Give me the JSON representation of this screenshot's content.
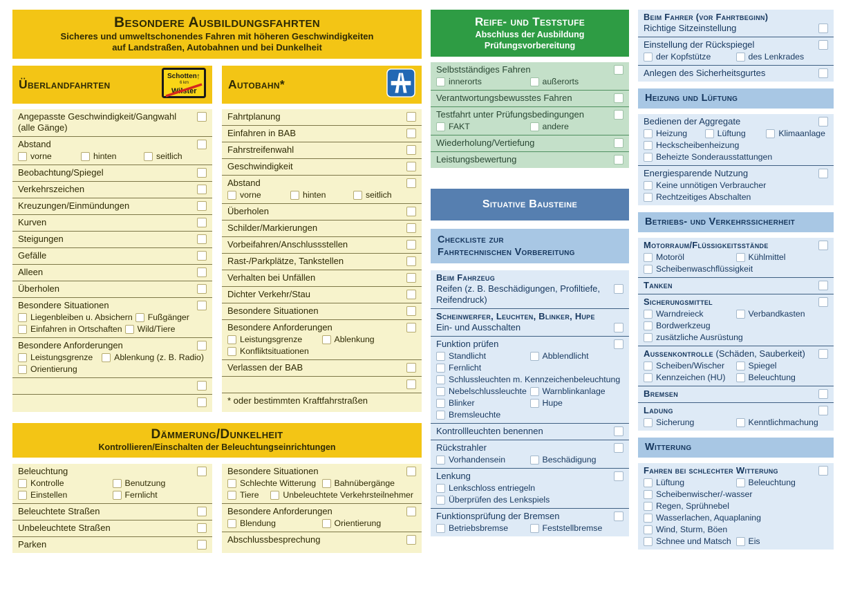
{
  "colors": {
    "yellow_band": "#f3c515",
    "yellow_list": "#f7f3cc",
    "green_band": "#2e9c44",
    "green_list": "#c4e0c9",
    "steel_blue_band": "#567fb0",
    "light_blue_band": "#a8c7e4",
    "blue_list": "#deeaf6",
    "navy_text": "#16375e"
  },
  "left": {
    "header": {
      "title": "Besondere Ausbildungsfahrten",
      "subtitle1": "Sicheres und umweltschonendes Fahren mit höheren Geschwindigkeiten",
      "subtitle2": "auf Landstraßen, Autobahnen und bei Dunkelheit"
    },
    "ueberland": {
      "title": "Überlandfahrten",
      "sign": {
        "top": "Schotten",
        "arrow": "↑",
        "km": "6 km",
        "bottom": "Wilster"
      },
      "rows": [
        {
          "label": "Angepasste Geschwindigkeit/Gangwahl (alle Gänge)",
          "cb": true
        },
        {
          "label": "Abstand",
          "cb": true,
          "subs": [
            [
              "vorne",
              "hinten",
              "seitlich"
            ]
          ]
        },
        {
          "label": "Beobachtung/Spiegel",
          "cb": true
        },
        {
          "label": "Verkehrszeichen",
          "cb": true
        },
        {
          "label": "Kreuzungen/Einmündungen",
          "cb": true
        },
        {
          "label": "Kurven",
          "cb": true
        },
        {
          "label": "Steigungen",
          "cb": true
        },
        {
          "label": "Gefälle",
          "cb": true
        },
        {
          "label": "Alleen",
          "cb": true
        },
        {
          "label": "Überholen",
          "cb": true
        },
        {
          "label": "Besondere Situationen",
          "cb": true,
          "subs": [
            [
              "Liegenbleiben u. Absichern",
              "Fußgänger"
            ],
            [
              "Einfahren in Ortschaften",
              "Wild/Tiere"
            ]
          ]
        },
        {
          "label": "Besondere Anforderungen",
          "cb": true,
          "subs": [
            [
              "Leistungsgrenze",
              "Ablenkung (z. B. Radio)"
            ],
            [
              "Orientierung"
            ]
          ]
        },
        {
          "label": "",
          "cb": true
        },
        {
          "label": "",
          "cb": true
        }
      ]
    },
    "autobahn": {
      "title": "Autobahn*",
      "rows": [
        {
          "label": "Fahrtplanung",
          "cb": true
        },
        {
          "label": "Einfahren in BAB",
          "cb": true
        },
        {
          "label": "Fahrstreifenwahl",
          "cb": true
        },
        {
          "label": "Geschwindigkeit",
          "cb": true
        },
        {
          "label": "Abstand",
          "cb": true,
          "subs": [
            [
              "vorne",
              "hinten",
              "seitlich"
            ]
          ]
        },
        {
          "label": "Überholen",
          "cb": true
        },
        {
          "label": "Schilder/Markierungen",
          "cb": true
        },
        {
          "label": "Vorbeifahren/Anschlussstellen",
          "cb": true
        },
        {
          "label": "Rast-/Parkplätze, Tankstellen",
          "cb": true
        },
        {
          "label": "Verhalten bei Unfällen",
          "cb": true
        },
        {
          "label": "Dichter Verkehr/Stau",
          "cb": true
        },
        {
          "label": "Besondere Situationen",
          "cb": true
        },
        {
          "label": "Besondere Anforderungen",
          "cb": true,
          "subs": [
            [
              "Leistungsgrenze",
              "Ablenkung"
            ],
            [
              "Konfliktsituationen"
            ]
          ]
        },
        {
          "label": "Verlassen der BAB",
          "cb": true
        },
        {
          "label": "",
          "cb": true
        },
        {
          "label": "* oder bestimmten Kraftfahrstraßen",
          "cb": false
        }
      ]
    },
    "daemmerung": {
      "title": "Dämmerung/Dunkelheit",
      "subtitle": "Kontrollieren/Einschalten der Beleuchtungseinrichtungen",
      "left_rows": [
        {
          "label": "Beleuchtung",
          "cb": true,
          "subs": [
            [
              "Kontrolle",
              "Benutzung"
            ],
            [
              "Einstellen",
              "Fernlicht"
            ]
          ]
        },
        {
          "label": "Beleuchtete Straßen",
          "cb": true
        },
        {
          "label": "Unbeleuchtete Straßen",
          "cb": true
        },
        {
          "label": "Parken",
          "cb": true
        }
      ],
      "right_rows": [
        {
          "label": "Besondere Situationen",
          "cb": true,
          "subs": [
            [
              "Schlechte Witterung",
              "Bahnübergänge"
            ],
            [
              "Tiere",
              "Unbeleuchtete Verkehrsteilnehmer"
            ]
          ]
        },
        {
          "label": "Besondere Anforderungen",
          "cb": true,
          "subs": [
            [
              "Blendung",
              "Orientierung"
            ]
          ]
        },
        {
          "label": "Abschlussbesprechung",
          "cb": true
        }
      ]
    }
  },
  "middle": {
    "reife": {
      "title": "Reife- und Teststufe",
      "subtitle1": "Abschluss der Ausbildung",
      "subtitle2": "Prüfungsvorbereitung",
      "rows": [
        {
          "label": "Selbstständiges Fahren",
          "cb": true,
          "subs": [
            [
              "innerorts",
              "außerorts"
            ]
          ]
        },
        {
          "label": "Verantwortungsbewusstes Fahren",
          "cb": true
        },
        {
          "label": "Testfahrt unter Prüfungsbedingungen",
          "cb": true,
          "subs": [
            [
              "FAKT",
              "andere"
            ]
          ]
        },
        {
          "label": "Wiederholung/Vertiefung",
          "cb": true
        },
        {
          "label": "Leistungsbewertung",
          "cb": true
        }
      ]
    },
    "situative": {
      "title": "Situative Bausteine"
    },
    "checkliste": {
      "title1": "Checkliste zur",
      "title2": "Fahrtechnischen Vorbereitung",
      "rows": [
        {
          "heading": "Beim Fahrzeug",
          "label": "Reifen (z. B. Beschädigungen, Profiltiefe, Reifendruck)",
          "cb": true
        },
        {
          "heading": "Scheinwerfer, Leuchten, Blinker, Hupe",
          "label": "Ein- und Ausschalten",
          "cb": true
        },
        {
          "label": "Funktion prüfen",
          "cb": true,
          "subs": [
            [
              "Standlicht",
              "Abblendlicht"
            ],
            [
              "Fernlicht"
            ],
            [
              "Schlussleuchten m. Kennzeichenbeleuchtung"
            ],
            [
              "Nebelschlussleuchte",
              "Warnblinkanlage"
            ],
            [
              "Blinker",
              "Hupe"
            ],
            [
              "Bremsleuchte"
            ]
          ]
        },
        {
          "label": "Kontrollleuchten benennen",
          "cb": true
        },
        {
          "label": "Rückstrahler",
          "cb": true,
          "subs": [
            [
              "Vorhandensein",
              "Beschädigung"
            ]
          ]
        },
        {
          "label": "Lenkung",
          "cb": true,
          "subs": [
            [
              "Lenkschloss entriegeln"
            ],
            [
              "Überprüfen des Lenkspiels"
            ]
          ]
        },
        {
          "label": "Funktionsprüfung der Bremsen",
          "cb": true,
          "subs": [
            [
              "Betriebsbremse",
              "Feststellbremse"
            ]
          ]
        }
      ]
    }
  },
  "right": {
    "fahrer": {
      "rows": [
        {
          "heading": "Beim Fahrer (vor Fahrtbeginn)",
          "label": "Richtige Sitzeinstellung",
          "cb": true
        },
        {
          "label": "Einstellung der Rückspiegel",
          "cb": true,
          "subs": [
            [
              "der Kopfstütze",
              "des Lenkrades"
            ]
          ]
        },
        {
          "label": "Anlegen des Sicherheitsgurtes",
          "cb": true
        }
      ]
    },
    "heizung": {
      "band": "Heizung und Lüftung",
      "rows": [
        {
          "label": "Bedienen der Aggregate",
          "cb": true,
          "subs": [
            [
              "Heizung",
              "Lüftung",
              "Klimaanlage"
            ],
            [
              "Heckscheibenheizung"
            ],
            [
              "Beheizte Sonderausstattungen"
            ]
          ]
        },
        {
          "label": "Energiesparende Nutzung",
          "cb": true,
          "subs": [
            [
              "Keine unnötigen Verbraucher"
            ],
            [
              "Rechtzeitiges Abschalten"
            ]
          ]
        }
      ]
    },
    "betrieb": {
      "band": "Betriebs- und Verkehrssicherheit",
      "rows": [
        {
          "label": "Motorraum/Flüssigkeitsstände",
          "sc": true,
          "cb": true,
          "subs": [
            [
              "Motoröl",
              "Kühlmittel"
            ],
            [
              "Scheibenwaschflüssigkeit"
            ]
          ]
        },
        {
          "label": "Tanken",
          "sc": true,
          "cb": true
        },
        {
          "label": "Sicherungsmittel",
          "sc": true,
          "cb": true,
          "subs": [
            [
              "Warndreieck",
              "Verbandkasten"
            ],
            [
              "Bordwerkzeug"
            ],
            [
              "zusätzliche Ausrüstung"
            ]
          ]
        },
        {
          "label": "Aussenkontrolle",
          "sc": true,
          "suffix": " (Schäden, Sauberkeit)",
          "cb": true,
          "subs": [
            [
              "Scheiben/Wischer",
              "Spiegel"
            ],
            [
              "Kennzeichen (HU)",
              "Beleuchtung"
            ]
          ]
        },
        {
          "label": "Bremsen",
          "sc": true,
          "cb": true
        },
        {
          "label": "Ladung",
          "sc": true,
          "cb": true,
          "subs": [
            [
              "Sicherung",
              "Kenntlichmachung"
            ]
          ]
        }
      ]
    },
    "witterung": {
      "band": "Witterung",
      "rows": [
        {
          "label": "Fahren bei schlechter Witterung",
          "sc": true,
          "cb": true,
          "subs": [
            [
              "Lüftung",
              "Beleuchtung"
            ],
            [
              "Scheibenwischer/-wasser"
            ],
            [
              "Regen, Sprühnebel"
            ],
            [
              "Wasserlachen, Aquaplaning"
            ],
            [
              "Wind, Sturm, Böen"
            ],
            [
              "Schnee und Matsch",
              "Eis"
            ]
          ]
        }
      ]
    }
  }
}
